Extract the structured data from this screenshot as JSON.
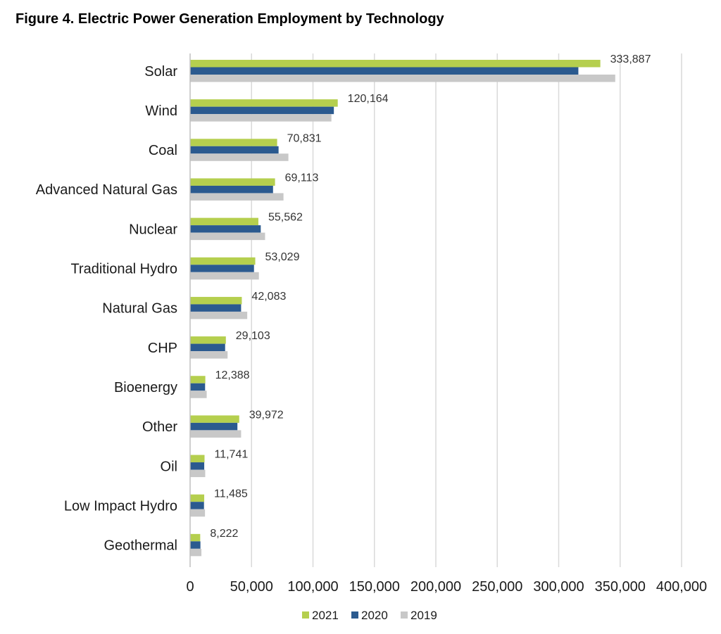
{
  "chart_data": {
    "type": "bar",
    "orientation": "horizontal",
    "title": "Figure 4. Electric Power Generation Employment by Technology",
    "categories": [
      "Solar",
      "Wind",
      "Coal",
      "Advanced Natural Gas",
      "Nuclear",
      "Traditional  Hydro",
      "Natural Gas",
      "CHP",
      "Bioenergy",
      "Other",
      "Oil",
      "Low Impact Hydro",
      "Geothermal"
    ],
    "series": [
      {
        "name": "2021",
        "color": "#b5cf4e",
        "values": [
          333887,
          120164,
          70831,
          69113,
          55562,
          53029,
          42083,
          29103,
          12388,
          39972,
          11741,
          11485,
          8222
        ]
      },
      {
        "name": "2020",
        "color": "#2b5a8f",
        "values": [
          316000,
          117000,
          72000,
          67500,
          57500,
          52000,
          41500,
          28500,
          12200,
          38500,
          11500,
          11300,
          8400
        ]
      },
      {
        "name": "2019",
        "color": "#c8c8c8",
        "values": [
          346000,
          115000,
          80000,
          76000,
          61000,
          56000,
          46500,
          30500,
          13500,
          41500,
          12300,
          12100,
          9200
        ]
      }
    ],
    "data_labels": [
      "333,887",
      "120,164",
      "70,831",
      "69,113",
      "55,562",
      "53,029",
      "42,083",
      "29,103",
      "12,388",
      "39,972",
      "11,741",
      "11,485",
      "8,222"
    ],
    "x_ticks": [
      "0",
      "50,000",
      "100,000",
      "150,000",
      "200,000",
      "250,000",
      "300,000",
      "350,000",
      "400,000"
    ],
    "xlim": [
      0,
      400000
    ],
    "grid": true,
    "legend_position": "bottom"
  }
}
